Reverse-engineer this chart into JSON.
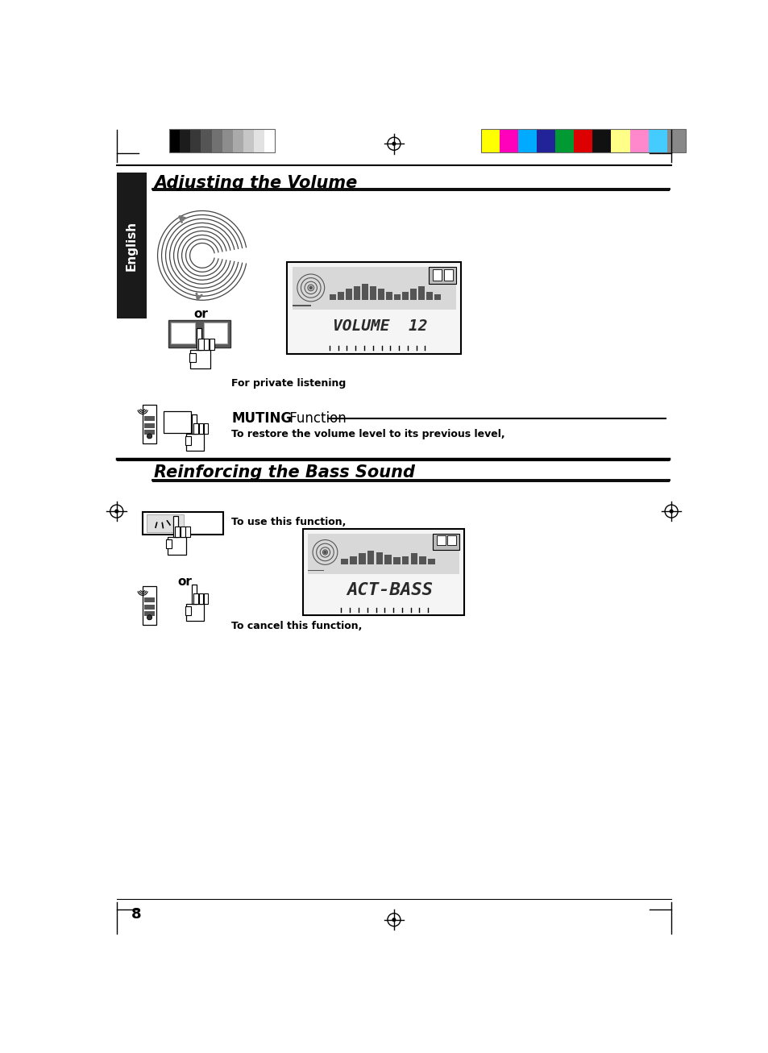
{
  "title": "Adjusting the Volume",
  "title2": "Reinforcing the Bass Sound",
  "section_muting": "MUTING Function",
  "text_private": "For private listening",
  "text_restore": "To restore the volume level to its previous level,",
  "text_use": "To use this function,",
  "text_cancel": "To cancel this function,",
  "display1_text": "VOLUME  12",
  "display2_text": "ACT-BASS",
  "page_number": "8",
  "bg_color": "#ffffff",
  "black": "#000000",
  "english_bg": "#1a1a1a",
  "english_text": "#ffffff",
  "swatch_bw": [
    "#000000",
    "#1c1c1c",
    "#383838",
    "#555555",
    "#717171",
    "#8d8d8d",
    "#aaaaaa",
    "#c6c6c6",
    "#e2e2e2",
    "#ffffff"
  ],
  "swatch_color": [
    "#ffff00",
    "#ff00bb",
    "#00aaff",
    "#222299",
    "#009933",
    "#dd0000",
    "#111111",
    "#ffff88",
    "#ff88cc",
    "#44ccff",
    "#888888"
  ]
}
